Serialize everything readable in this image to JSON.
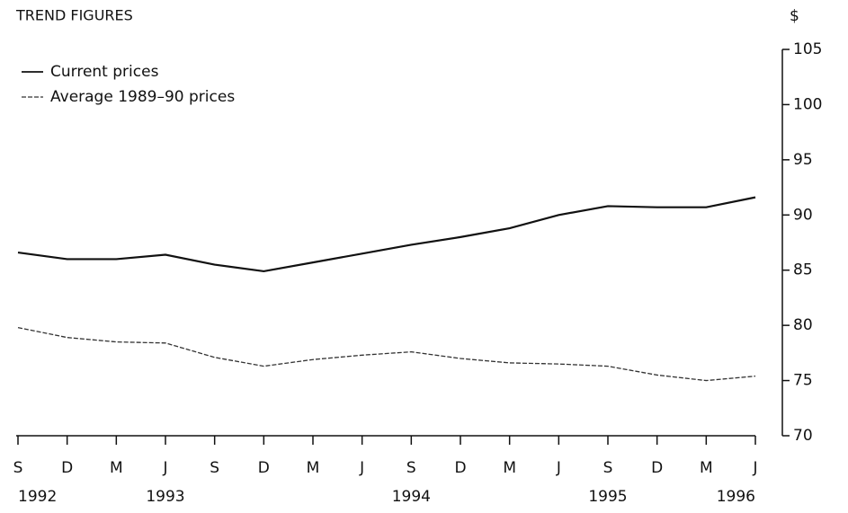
{
  "chart_data": {
    "type": "line",
    "title": "TREND FIGURES",
    "y_axis_label": "$",
    "categories": [
      "S",
      "D",
      "M",
      "J",
      "S",
      "D",
      "M",
      "J",
      "S",
      "D",
      "M",
      "J",
      "S",
      "D",
      "M",
      "J"
    ],
    "year_labels": [
      "1992",
      null,
      null,
      "1993",
      null,
      null,
      null,
      null,
      "1994",
      null,
      null,
      null,
      "1995",
      null,
      null,
      "1996"
    ],
    "series": [
      {
        "name": "Current prices",
        "color": "#111111",
        "line_style": "solid",
        "values": [
          86.6,
          86.0,
          86.0,
          86.4,
          85.5,
          84.9,
          85.7,
          86.5,
          87.3,
          88.0,
          88.8,
          90.0,
          90.8,
          90.7,
          90.7,
          91.6
        ]
      },
      {
        "name": "Average 1989–90 prices",
        "color": "#333333",
        "line_style": "dashed",
        "values": [
          79.8,
          78.9,
          78.5,
          78.4,
          77.1,
          76.3,
          76.9,
          77.3,
          77.6,
          77.0,
          76.6,
          76.5,
          76.3,
          75.5,
          75.0,
          75.4
        ]
      }
    ],
    "ylim": [
      70,
      105
    ],
    "yticks": [
      70,
      75,
      80,
      85,
      90,
      95,
      100,
      105
    ],
    "y_axis_side": "right",
    "grid": false
  }
}
